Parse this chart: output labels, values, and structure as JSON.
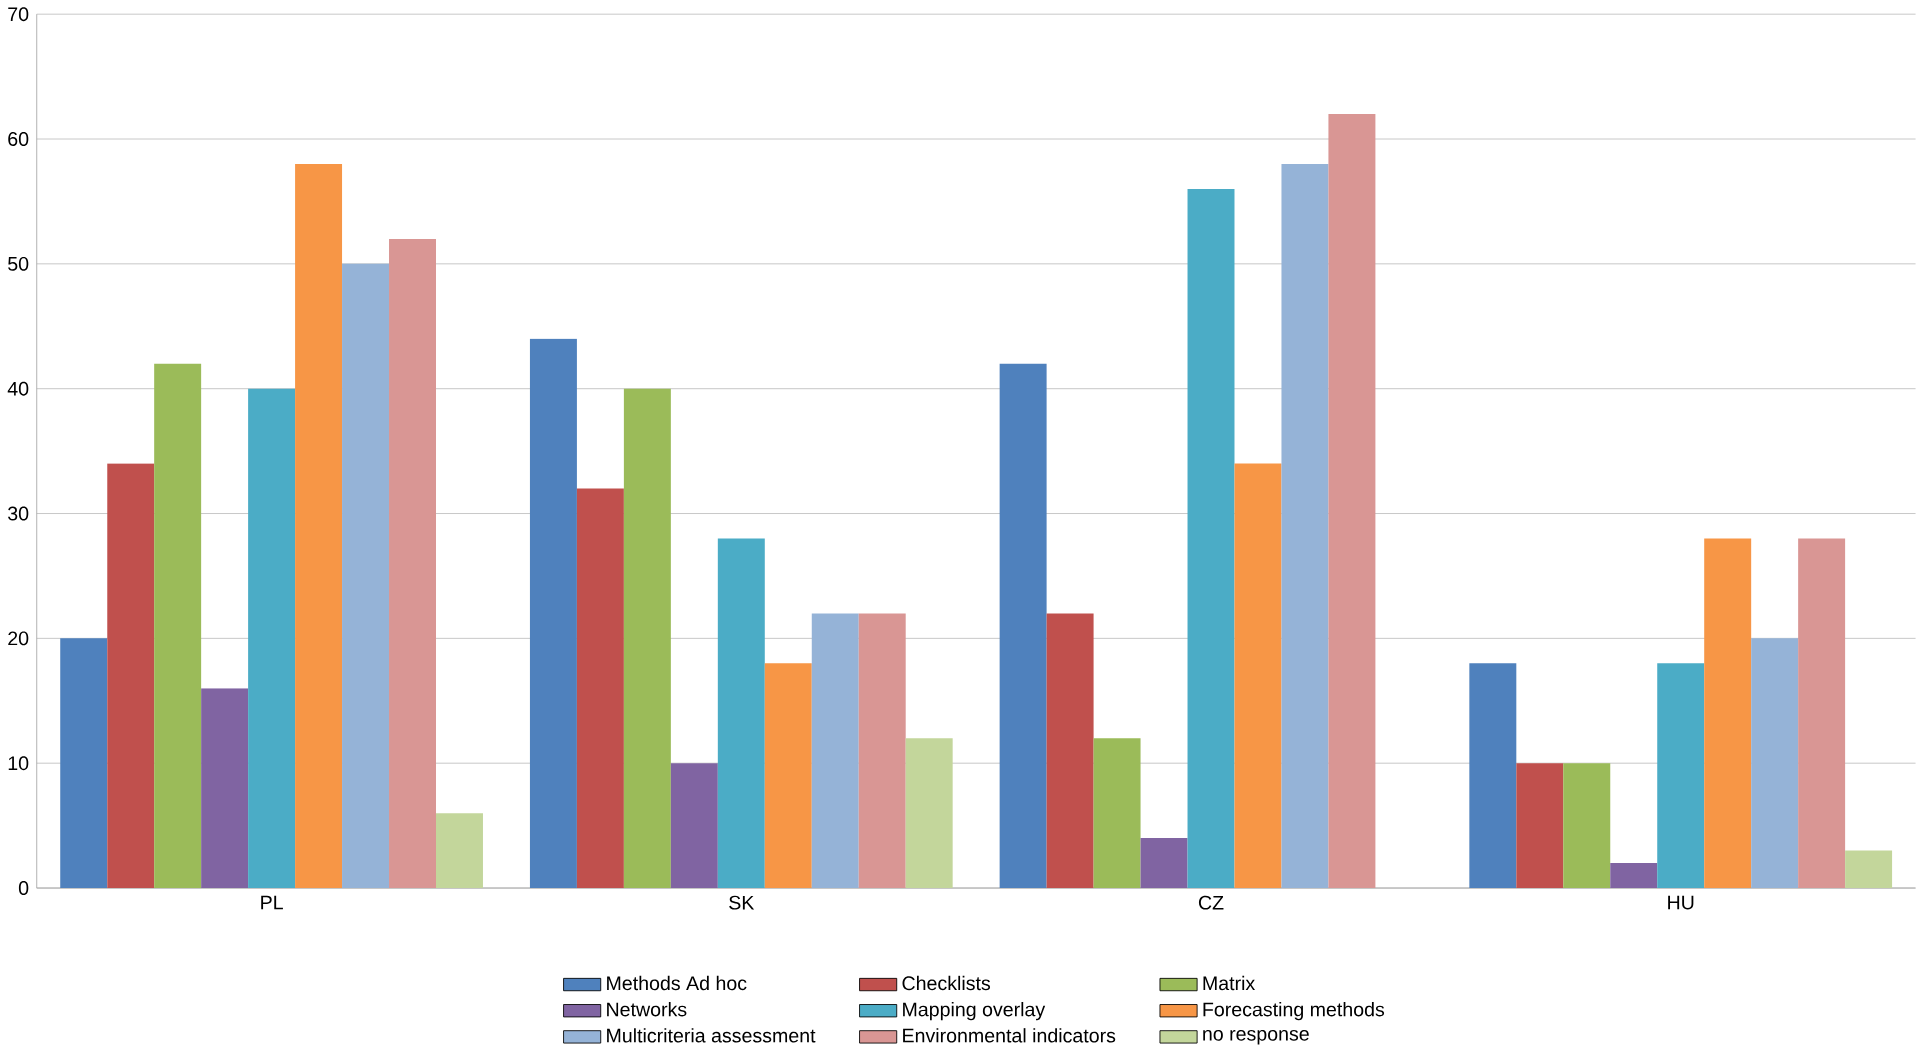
{
  "chart_data": {
    "type": "bar",
    "categories": [
      "PL",
      "SK",
      "CZ",
      "HU"
    ],
    "series": [
      {
        "name": "Methods Ad hoc",
        "color": "#4f81bd",
        "values": [
          20,
          44,
          42,
          18
        ]
      },
      {
        "name": "Checklists",
        "color": "#c0504d",
        "values": [
          34,
          32,
          22,
          10
        ]
      },
      {
        "name": "Matrix",
        "color": "#9bbb59",
        "values": [
          42,
          40,
          12,
          10
        ]
      },
      {
        "name": "Networks",
        "color": "#8064a2",
        "values": [
          16,
          10,
          4,
          2
        ]
      },
      {
        "name": "Mapping overlay",
        "color": "#4bacc6",
        "values": [
          40,
          28,
          56,
          18
        ]
      },
      {
        "name": "Forecasting methods",
        "color": "#f79646",
        "values": [
          58,
          18,
          34,
          28
        ]
      },
      {
        "name": "Multicriteria assessment",
        "color": "#95b3d7",
        "values": [
          50,
          22,
          58,
          20
        ]
      },
      {
        "name": "Environmental indicators",
        "color": "#d99694",
        "values": [
          52,
          22,
          62,
          28
        ]
      },
      {
        "name": "no response",
        "color": "#c3d69b",
        "values": [
          6,
          12,
          0,
          3
        ]
      }
    ],
    "ylim": [
      0,
      70
    ],
    "yticks": [
      0,
      10,
      20,
      30,
      40,
      50,
      60,
      70
    ],
    "grid": "y",
    "legend": "bottom"
  }
}
